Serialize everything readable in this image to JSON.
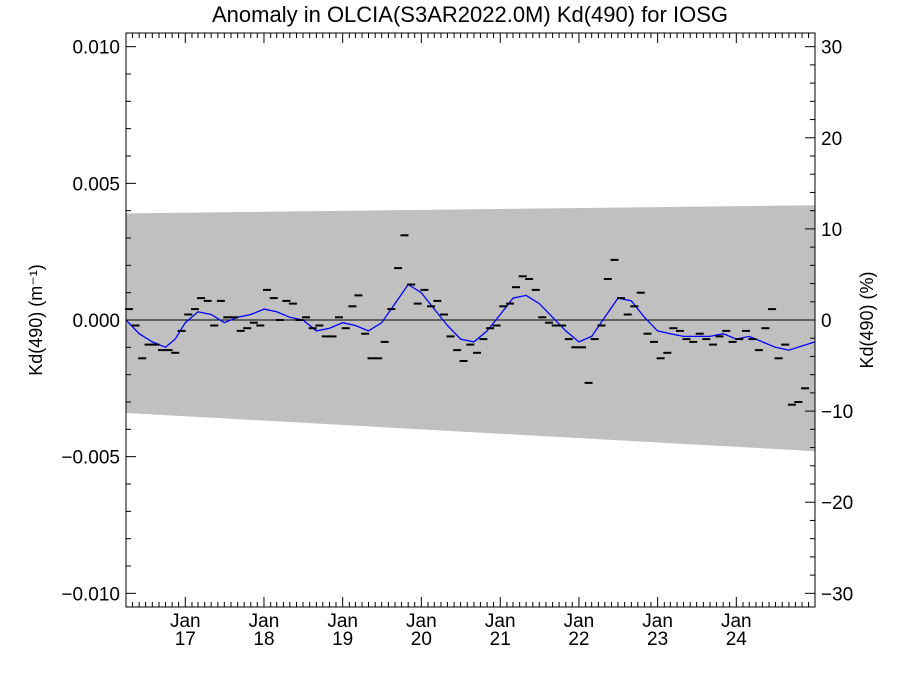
{
  "chart_data": {
    "type": "scatter",
    "title": "Anomaly in OLCIA(S3AR2022.0M) Kd(490) for IOSG",
    "ylabel_left": "Kd(490) (m⁻¹)",
    "ylabel_right": "Kd(490) (%)",
    "ylim_left": [
      -0.0105,
      0.0105
    ],
    "ylim_right": [
      -31.5,
      31.5
    ],
    "left_ticks": [
      "0.010",
      "0.005",
      "0.000",
      "−0.005",
      "−0.010"
    ],
    "left_tick_values": [
      0.01,
      0.005,
      0,
      -0.005,
      -0.01
    ],
    "right_ticks": [
      "30",
      "20",
      "10",
      "0",
      "−10",
      "−20",
      "−30"
    ],
    "right_tick_values": [
      30,
      20,
      10,
      0,
      -10,
      -20,
      -30
    ],
    "xlim": [
      "2016-04-01",
      "2024-12-31"
    ],
    "x_ticks": [
      {
        "month": "Jan",
        "year": "17",
        "date": "2017-01-01"
      },
      {
        "month": "Jan",
        "year": "18",
        "date": "2018-01-01"
      },
      {
        "month": "Jan",
        "year": "19",
        "date": "2019-01-01"
      },
      {
        "month": "Jan",
        "year": "20",
        "date": "2020-01-01"
      },
      {
        "month": "Jan",
        "year": "21",
        "date": "2021-01-01"
      },
      {
        "month": "Jan",
        "year": "22",
        "date": "2022-01-01"
      },
      {
        "month": "Jan",
        "year": "23",
        "date": "2023-01-01"
      },
      {
        "month": "Jan",
        "year": "24",
        "date": "2024-01-01"
      }
    ],
    "band": {
      "color": "#c0c0c0",
      "upper": [
        {
          "x": "2016-04-01",
          "y": 0.0039
        },
        {
          "x": "2024-12-31",
          "y": 0.0042
        }
      ],
      "lower": [
        {
          "x": "2016-04-01",
          "y": -0.0034
        },
        {
          "x": "2024-12-31",
          "y": -0.0048
        }
      ]
    },
    "zero_line": 0,
    "monthly_anomaly": {
      "marker": "dash",
      "color": "#000000",
      "points": [
        [
          "2016-04",
          0.0004
        ],
        [
          "2016-05",
          -0.0002
        ],
        [
          "2016-06",
          -0.0014
        ],
        [
          "2016-07",
          -0.0009
        ],
        [
          "2016-08",
          -0.0009
        ],
        [
          "2016-09",
          -0.0011
        ],
        [
          "2016-10",
          -0.0011
        ],
        [
          "2016-11",
          -0.0012
        ],
        [
          "2016-12",
          -0.0004
        ],
        [
          "2017-01",
          0.0002
        ],
        [
          "2017-02",
          0.0004
        ],
        [
          "2017-03",
          0.0008
        ],
        [
          "2017-04",
          0.0007
        ],
        [
          "2017-05",
          -0.0002
        ],
        [
          "2017-06",
          0.0007
        ],
        [
          "2017-07",
          0.0001
        ],
        [
          "2017-08",
          0.0001
        ],
        [
          "2017-09",
          -0.0004
        ],
        [
          "2017-10",
          -0.0003
        ],
        [
          "2017-11",
          -0.0001
        ],
        [
          "2017-12",
          -0.0002
        ],
        [
          "2018-01",
          0.0011
        ],
        [
          "2018-02",
          0.0008
        ],
        [
          "2018-03",
          0.0
        ],
        [
          "2018-04",
          0.0007
        ],
        [
          "2018-05",
          0.0006
        ],
        [
          "2018-06",
          0.0
        ],
        [
          "2018-07",
          0.0001
        ],
        [
          "2018-08",
          -0.0003
        ],
        [
          "2018-09",
          -0.0002
        ],
        [
          "2018-10",
          -0.0006
        ],
        [
          "2018-11",
          -0.0006
        ],
        [
          "2018-12",
          0.0001
        ],
        [
          "2019-01",
          -0.0003
        ],
        [
          "2019-02",
          0.0005
        ],
        [
          "2019-03",
          0.0009
        ],
        [
          "2019-04",
          -0.0005
        ],
        [
          "2019-05",
          -0.0014
        ],
        [
          "2019-06",
          -0.0014
        ],
        [
          "2019-07",
          -0.0008
        ],
        [
          "2019-08",
          0.0004
        ],
        [
          "2019-09",
          0.0019
        ],
        [
          "2019-10",
          0.0031
        ],
        [
          "2019-11",
          0.0013
        ],
        [
          "2019-12",
          0.0006
        ],
        [
          "2020-01",
          0.0011
        ],
        [
          "2020-02",
          0.0005
        ],
        [
          "2020-03",
          0.0007
        ],
        [
          "2020-04",
          0.0002
        ],
        [
          "2020-05",
          -0.0006
        ],
        [
          "2020-06",
          -0.0011
        ],
        [
          "2020-07",
          -0.0015
        ],
        [
          "2020-08",
          -0.0009
        ],
        [
          "2020-09",
          -0.0012
        ],
        [
          "2020-10",
          -0.0007
        ],
        [
          "2020-11",
          -0.0003
        ],
        [
          "2020-12",
          -0.0002
        ],
        [
          "2021-01",
          0.0005
        ],
        [
          "2021-02",
          0.0006
        ],
        [
          "2021-03",
          0.0012
        ],
        [
          "2021-04",
          0.0016
        ],
        [
          "2021-05",
          0.0015
        ],
        [
          "2021-06",
          0.0011
        ],
        [
          "2021-07",
          0.0001
        ],
        [
          "2021-08",
          -0.0001
        ],
        [
          "2021-09",
          -0.0002
        ],
        [
          "2021-10",
          -0.0002
        ],
        [
          "2021-11",
          -0.0007
        ],
        [
          "2021-12",
          -0.001
        ],
        [
          "2022-01",
          -0.001
        ],
        [
          "2022-02",
          -0.0023
        ],
        [
          "2022-03",
          -0.0007
        ],
        [
          "2022-04",
          -0.0002
        ],
        [
          "2022-05",
          0.0015
        ],
        [
          "2022-06",
          0.0022
        ],
        [
          "2022-07",
          0.0008
        ],
        [
          "2022-08",
          0.0002
        ],
        [
          "2022-09",
          0.0005
        ],
        [
          "2022-10",
          0.001
        ],
        [
          "2022-11",
          -0.0005
        ],
        [
          "2022-12",
          -0.0008
        ],
        [
          "2023-01",
          -0.0014
        ],
        [
          "2023-02",
          -0.0012
        ],
        [
          "2023-03",
          -0.0003
        ],
        [
          "2023-04",
          -0.0004
        ],
        [
          "2023-05",
          -0.0007
        ],
        [
          "2023-06",
          -0.0008
        ],
        [
          "2023-07",
          -0.0005
        ],
        [
          "2023-08",
          -0.0007
        ],
        [
          "2023-09",
          -0.0009
        ],
        [
          "2023-10",
          -0.0006
        ],
        [
          "2023-11",
          -0.0004
        ],
        [
          "2023-12",
          -0.0008
        ],
        [
          "2024-01",
          -0.0007
        ],
        [
          "2024-02",
          -0.0004
        ],
        [
          "2024-03",
          -0.0007
        ],
        [
          "2024-04",
          -0.0011
        ],
        [
          "2024-05",
          -0.0003
        ],
        [
          "2024-06",
          0.0004
        ],
        [
          "2024-07",
          -0.0014
        ],
        [
          "2024-08",
          -0.0009
        ],
        [
          "2024-09",
          -0.0031
        ],
        [
          "2024-10",
          -0.003
        ],
        [
          "2024-11",
          -0.0025
        ]
      ]
    },
    "smoothed": {
      "color": "#0000ff",
      "points": [
        [
          "2016-04-01",
          0.0
        ],
        [
          "2016-06-01",
          -0.0005
        ],
        [
          "2016-08-01",
          -0.0008
        ],
        [
          "2016-10-01",
          -0.001
        ],
        [
          "2016-11-15",
          -0.0007
        ],
        [
          "2017-01-01",
          -0.0001
        ],
        [
          "2017-03-01",
          0.0003
        ],
        [
          "2017-05-01",
          0.0002
        ],
        [
          "2017-07-01",
          -0.0001
        ],
        [
          "2017-09-01",
          0.0001
        ],
        [
          "2017-11-01",
          0.0002
        ],
        [
          "2018-01-01",
          0.0004
        ],
        [
          "2018-03-01",
          0.0003
        ],
        [
          "2018-05-01",
          0.0001
        ],
        [
          "2018-07-01",
          0.0
        ],
        [
          "2018-09-01",
          -0.0004
        ],
        [
          "2018-11-01",
          -0.0003
        ],
        [
          "2019-01-01",
          -0.0001
        ],
        [
          "2019-03-01",
          -0.0002
        ],
        [
          "2019-05-01",
          -0.0004
        ],
        [
          "2019-07-01",
          -0.0001
        ],
        [
          "2019-09-01",
          0.0006
        ],
        [
          "2019-11-01",
          0.0013
        ],
        [
          "2020-01-01",
          0.001
        ],
        [
          "2020-03-01",
          0.0004
        ],
        [
          "2020-05-01",
          -0.0002
        ],
        [
          "2020-07-01",
          -0.0007
        ],
        [
          "2020-09-01",
          -0.0008
        ],
        [
          "2020-11-01",
          -0.0004
        ],
        [
          "2021-01-01",
          0.0002
        ],
        [
          "2021-03-01",
          0.0008
        ],
        [
          "2021-05-01",
          0.0009
        ],
        [
          "2021-07-01",
          0.0006
        ],
        [
          "2021-09-01",
          0.0001
        ],
        [
          "2021-11-01",
          -0.0004
        ],
        [
          "2022-01-01",
          -0.0008
        ],
        [
          "2022-03-01",
          -0.0006
        ],
        [
          "2022-05-01",
          0.0001
        ],
        [
          "2022-07-01",
          0.0008
        ],
        [
          "2022-09-01",
          0.0007
        ],
        [
          "2022-11-01",
          0.0001
        ],
        [
          "2023-01-01",
          -0.0004
        ],
        [
          "2023-03-01",
          -0.0005
        ],
        [
          "2023-05-01",
          -0.0006
        ],
        [
          "2023-07-01",
          -0.0006
        ],
        [
          "2023-09-01",
          -0.0006
        ],
        [
          "2023-11-01",
          -0.0005
        ],
        [
          "2024-01-01",
          -0.0007
        ],
        [
          "2024-03-01",
          -0.0006
        ],
        [
          "2024-05-01",
          -0.0008
        ],
        [
          "2024-07-01",
          -0.001
        ],
        [
          "2024-09-01",
          -0.0011
        ],
        [
          "2024-12-31",
          -0.0008
        ]
      ]
    }
  }
}
